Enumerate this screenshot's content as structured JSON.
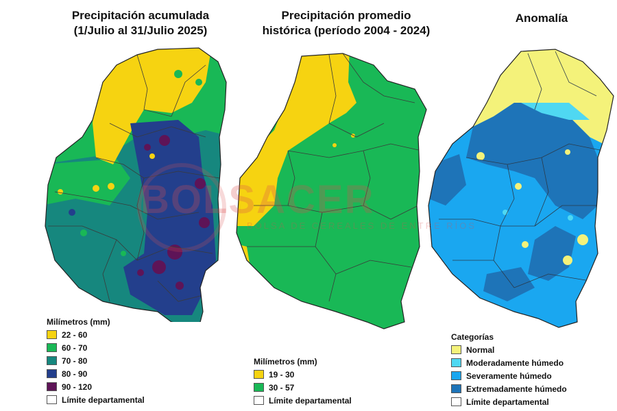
{
  "panels": [
    {
      "title_line1": "Precipitación acumulada",
      "title_line2": "(1/Julio al 31/Julio 2025)",
      "legend_title": "Milímetros (mm)",
      "legend": [
        {
          "label": "22 - 60",
          "color": "#f6d311"
        },
        {
          "label": "60 - 70",
          "color": "#19b856"
        },
        {
          "label": "70 - 80",
          "color": "#16877e"
        },
        {
          "label": "80 - 90",
          "color": "#233f8c"
        },
        {
          "label": "90 - 120",
          "color": "#5e1457"
        },
        {
          "label": "Límite departamental",
          "color": "#ffffff"
        }
      ]
    },
    {
      "title_line1": "Precipitación promedio",
      "title_line2": "histórica (período 2004 - 2024)",
      "legend_title": "Milímetros (mm)",
      "legend": [
        {
          "label": "19 - 30",
          "color": "#f6d311"
        },
        {
          "label": "30 - 57",
          "color": "#19b856"
        },
        {
          "label": "Límite departamental",
          "color": "#ffffff"
        }
      ]
    },
    {
      "title_line1": "Anomalía",
      "title_line2": "",
      "legend_title": "Categorías",
      "legend": [
        {
          "label": "Normal",
          "color": "#f4f27a"
        },
        {
          "label": "Moderadamente húmedo",
          "color": "#4fd8f2"
        },
        {
          "label": "Severamente húmedo",
          "color": "#1aa7f0"
        },
        {
          "label": "Extremadamente húmedo",
          "color": "#1e74b8"
        },
        {
          "label": "Límite departamental",
          "color": "#ffffff"
        }
      ]
    }
  ],
  "watermark": {
    "text": "BOLSACER",
    "sub": "BOLSA DE CEREALES DE ENTRE RÍOS"
  }
}
